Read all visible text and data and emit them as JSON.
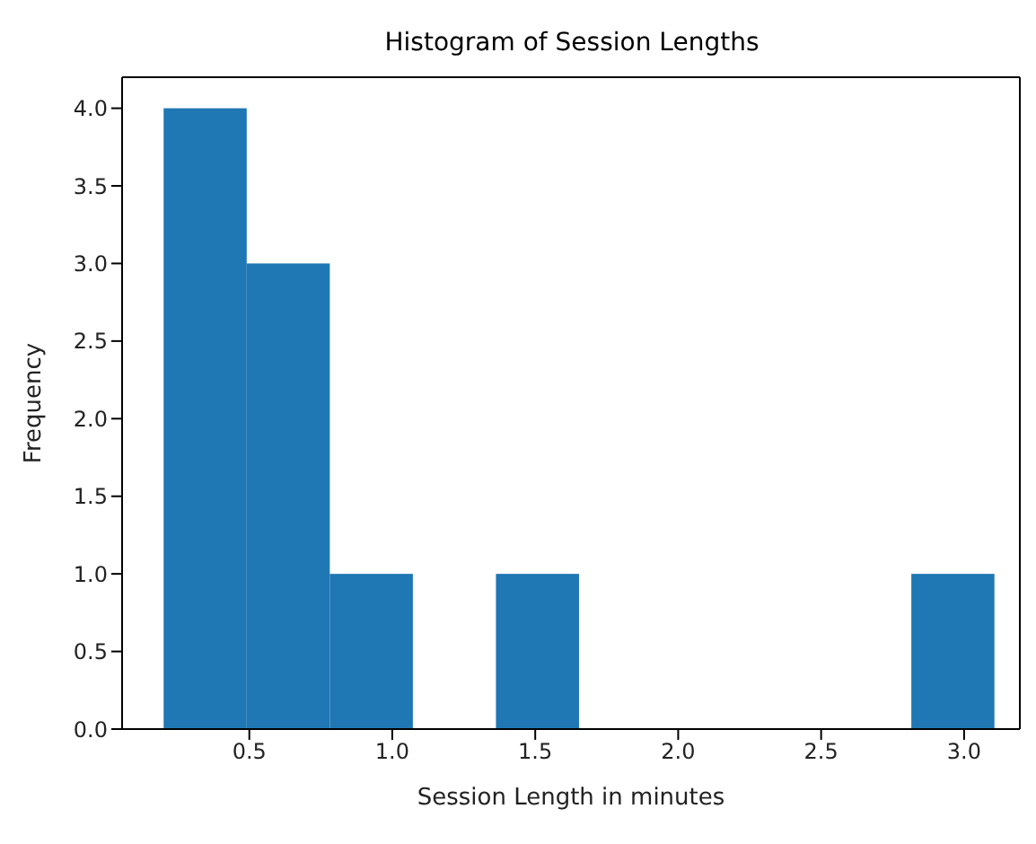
{
  "chart_data": {
    "type": "histogram",
    "title": "Histogram of Session Lengths",
    "xlabel": "Session Length in minutes",
    "ylabel": "Frequency",
    "bins": [
      0.2,
      0.49,
      0.78,
      1.07,
      1.36,
      1.65,
      1.94,
      2.23,
      2.52,
      2.81,
      3.1
    ],
    "values": [
      4,
      3,
      1,
      0,
      1,
      0,
      0,
      0,
      0,
      1
    ],
    "color": "#1f77b4",
    "xlim": [
      0.055,
      3.195
    ],
    "xticks": [
      0.5,
      {
        "value": 1,
        "label": "1.0"
      },
      1.5,
      {
        "value": 2,
        "label": "2.0"
      },
      2.5,
      {
        "value": 3,
        "label": "3.0"
      }
    ],
    "ylim": [
      0,
      4.2
    ],
    "yticks": [
      {
        "value": 0,
        "label": "0.0"
      },
      0.5,
      {
        "value": 1,
        "label": "1.0"
      },
      1.5,
      {
        "value": 2,
        "label": "2.0"
      },
      2.5,
      {
        "value": 3,
        "label": "3.0"
      },
      3.5,
      {
        "value": 4,
        "label": "4.0"
      }
    ],
    "grid": false,
    "legend": false
  }
}
